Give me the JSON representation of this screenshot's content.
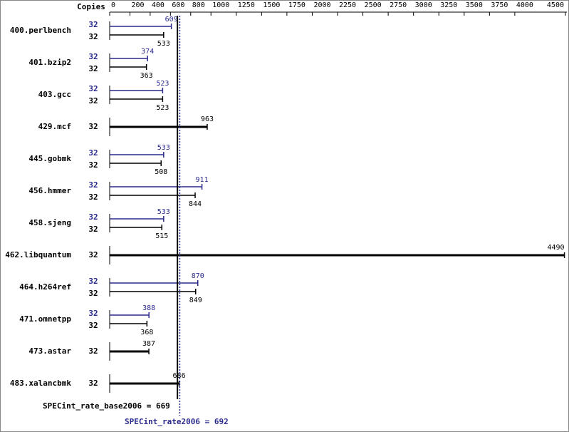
{
  "chart_data": {
    "type": "bar",
    "orientation": "horizontal",
    "copies_label": "Copies",
    "categories": [
      "400.perlbench",
      "401.bzip2",
      "403.gcc",
      "429.mcf",
      "445.gobmk",
      "456.hmmer",
      "458.sjeng",
      "462.libquantum",
      "464.h264ref",
      "471.omnetpp",
      "473.astar",
      "483.xalancbmk"
    ],
    "series": [
      {
        "color": "#2a2a8c",
        "copies": [
          32,
          32,
          32,
          null,
          32,
          32,
          32,
          null,
          32,
          32,
          null,
          null
        ],
        "values": [
          609,
          374,
          523,
          null,
          533,
          911,
          533,
          null,
          870,
          388,
          null,
          null
        ]
      },
      {
        "color": "#000000",
        "copies": [
          32,
          32,
          32,
          32,
          32,
          32,
          32,
          32,
          32,
          32,
          32,
          32
        ],
        "values": [
          533,
          363,
          523,
          963,
          508,
          844,
          515,
          4490,
          849,
          368,
          387,
          686
        ]
      }
    ],
    "xlim": [
      0,
      4500
    ],
    "xticks": [
      0,
      200,
      400,
      600,
      800,
      1000,
      1250,
      1500,
      1750,
      2000,
      2250,
      2500,
      2750,
      3000,
      3250,
      3500,
      3750,
      4000,
      4500
    ],
    "reference_lines": [
      {
        "label": "SPECint_rate_base2006 = 669",
        "value": 669,
        "color": "#000000"
      },
      {
        "label": "SPECint_rate2006 = 692",
        "value": 692,
        "color": "#2a2a8c"
      }
    ]
  }
}
